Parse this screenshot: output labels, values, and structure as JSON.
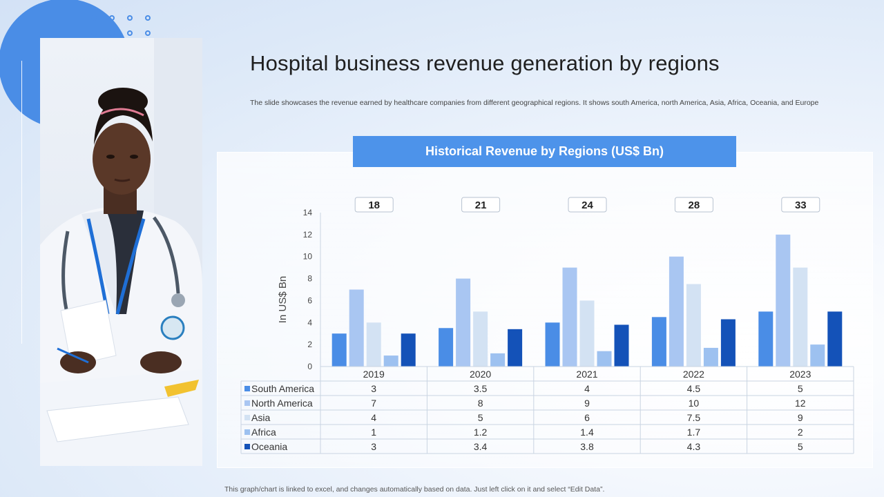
{
  "slide": {
    "title": "Hospital business revenue generation by regions",
    "subtitle": "The slide showcases the revenue earned by healthcare companies from different geographical regions. It shows south America, north America, Asia, Africa, Oceania, and Europe",
    "footer": "This graph/chart is linked to excel, and changes automatically based on data. Just left click on it and select “Edit Data”."
  },
  "colors": {
    "accent": "#4a8de6",
    "header": "#4d93ea"
  },
  "chart_data": {
    "type": "bar",
    "title": "Historical Revenue by Regions (US$ Bn)",
    "ylabel": "In US$ Bn",
    "ylim": [
      0,
      14
    ],
    "yticks": [
      0,
      2,
      4,
      6,
      8,
      10,
      12,
      14
    ],
    "categories": [
      "2019",
      "2020",
      "2021",
      "2022",
      "2023"
    ],
    "totals": [
      "18",
      "21",
      "24",
      "28",
      "33"
    ],
    "series": [
      {
        "name": "South America",
        "color": "#4a8de6",
        "values": [
          3,
          3.5,
          4,
          4.5,
          5
        ],
        "labels": [
          "3",
          "3.5",
          "4",
          "4.5",
          "5"
        ]
      },
      {
        "name": "North America",
        "color": "#a9c6f2",
        "values": [
          7,
          8,
          9,
          10,
          12
        ],
        "labels": [
          "7",
          "8",
          "9",
          "10",
          "12"
        ]
      },
      {
        "name": "Asia",
        "color": "#d3e2f3",
        "values": [
          4,
          5,
          6,
          7.5,
          9
        ],
        "labels": [
          "4",
          "5",
          "6",
          "7.5",
          "9"
        ]
      },
      {
        "name": "Africa",
        "color": "#9dc1f0",
        "values": [
          1,
          1.2,
          1.4,
          1.7,
          2
        ],
        "labels": [
          "1",
          "1.2",
          "1.4",
          "1.7",
          "2"
        ]
      },
      {
        "name": "Oceania",
        "color": "#1452b8",
        "values": [
          3,
          3.4,
          3.8,
          4.3,
          5
        ],
        "labels": [
          "3",
          "3.4",
          "3.8",
          "4.3",
          "5"
        ]
      }
    ]
  }
}
